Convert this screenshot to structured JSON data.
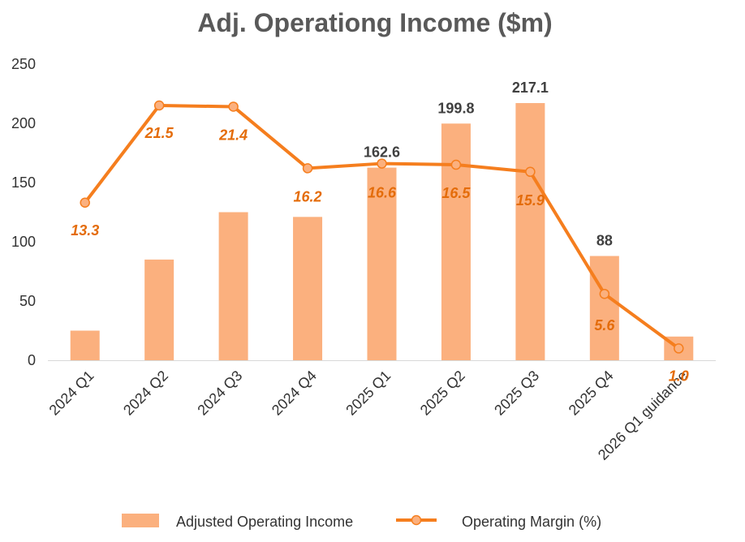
{
  "chart_data": {
    "type": "bar",
    "title": "Adj. Operationg Income ($m)",
    "categories": [
      "2024 Q1",
      "2024 Q2",
      "2024 Q3",
      "2024 Q4",
      "2025 Q1",
      "2025 Q2",
      "2025 Q3",
      "2025 Q4",
      "2026 Q1 guidance"
    ],
    "ylim": [
      0,
      250
    ],
    "yticks": [
      0,
      50,
      100,
      150,
      200,
      250
    ],
    "grid": false,
    "legend_position": "bottom",
    "series": [
      {
        "name": "Adjusted Operating Income",
        "type": "bar",
        "color": "#fbb07e",
        "values": [
          25,
          85,
          125,
          121,
          162.6,
          199.8,
          217.1,
          88,
          20
        ],
        "labels": [
          null,
          null,
          null,
          null,
          "162.6",
          "199.8",
          "217.1",
          "88",
          null
        ]
      },
      {
        "name": "Operating Margin (%)",
        "type": "line",
        "color": "#f57e1e",
        "values": [
          13.3,
          21.5,
          21.4,
          16.2,
          16.6,
          16.5,
          15.9,
          5.6,
          1.0
        ],
        "labels": [
          "13.3",
          "21.5",
          "21.4",
          "16.2",
          "16.6",
          "16.5",
          "15.9",
          "5.6",
          "1.0"
        ]
      }
    ]
  }
}
